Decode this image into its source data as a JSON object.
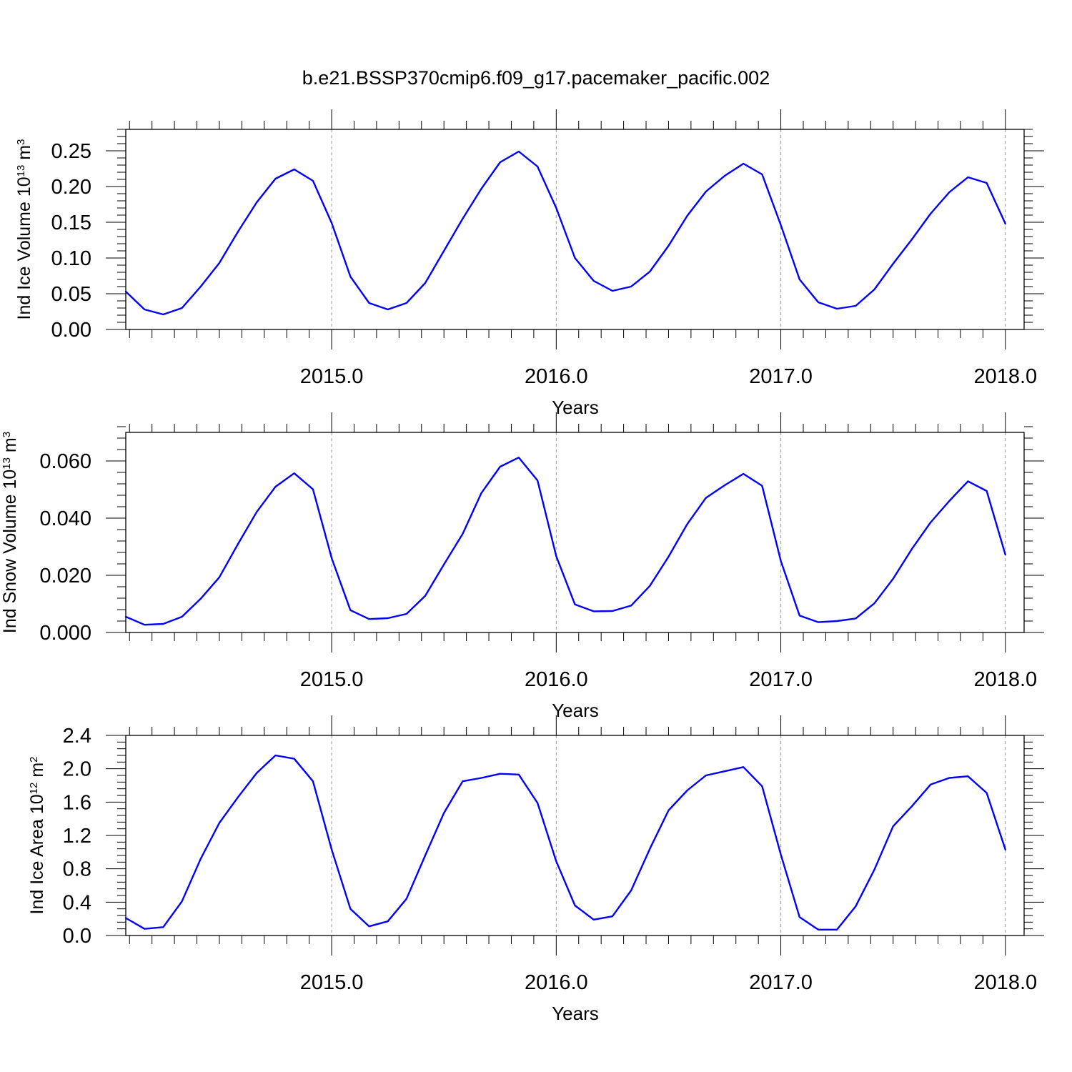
{
  "title": "b.e21.BSSP370cmip6.f09_g17.pacemaker_pacific.002",
  "colors": {
    "series": "#0000ff",
    "axis": "#000000",
    "grid": "#999999"
  },
  "chart_data": [
    {
      "type": "line",
      "id": "ice-volume",
      "ylabel": "Ind Ice Volume 10",
      "ylabel_exp": "13",
      "ylabel_unit": " m",
      "ylabel_unit_exp": "3",
      "xlabel": "Years",
      "xlim": [
        2014.0833,
        2018.0833
      ],
      "ylim": [
        0,
        0.28
      ],
      "xticks": [
        2015,
        2016,
        2017,
        2018
      ],
      "xtick_labels": [
        "2015.0",
        "2016.0",
        "2017.0",
        "2018.0"
      ],
      "yticks": [
        0,
        0.05,
        0.1,
        0.15,
        0.2,
        0.25
      ],
      "ytick_labels": [
        "0.00",
        "0.05",
        "0.10",
        "0.15",
        "0.20",
        "0.25"
      ],
      "x_grid": true,
      "x": [
        2014.0833,
        2014.1667,
        2014.25,
        2014.3333,
        2014.4167,
        2014.5,
        2014.5833,
        2014.6667,
        2014.75,
        2014.8333,
        2014.9167,
        2015.0,
        2015.0833,
        2015.1667,
        2015.25,
        2015.3333,
        2015.4167,
        2015.5,
        2015.5833,
        2015.6667,
        2015.75,
        2015.8333,
        2015.9167,
        2016.0,
        2016.0833,
        2016.1667,
        2016.25,
        2016.3333,
        2016.4167,
        2016.5,
        2016.5833,
        2016.6667,
        2016.75,
        2016.8333,
        2016.9167,
        2017.0,
        2017.0833,
        2017.1667,
        2017.25,
        2017.3333,
        2017.4167,
        2017.5,
        2017.5833,
        2017.6667,
        2017.75,
        2017.8333,
        2017.9167,
        2018.0
      ],
      "values": [
        0.053,
        0.028,
        0.021,
        0.03,
        0.06,
        0.093,
        0.137,
        0.178,
        0.211,
        0.224,
        0.208,
        0.149,
        0.074,
        0.037,
        0.028,
        0.037,
        0.065,
        0.11,
        0.155,
        0.197,
        0.234,
        0.249,
        0.228,
        0.17,
        0.1,
        0.068,
        0.054,
        0.06,
        0.081,
        0.117,
        0.159,
        0.193,
        0.215,
        0.232,
        0.217,
        0.146,
        0.07,
        0.038,
        0.029,
        0.033,
        0.056,
        0.092,
        0.126,
        0.162,
        0.192,
        0.213,
        0.205,
        0.148
      ]
    },
    {
      "type": "line",
      "id": "snow-volume",
      "ylabel": "Ind Snow Volume 10",
      "ylabel_exp": "13",
      "ylabel_unit": " m",
      "ylabel_unit_exp": "3",
      "xlabel": "Years",
      "xlim": [
        2014.0833,
        2018.0833
      ],
      "ylim": [
        0,
        0.07
      ],
      "xticks": [
        2015,
        2016,
        2017,
        2018
      ],
      "xtick_labels": [
        "2015.0",
        "2016.0",
        "2017.0",
        "2018.0"
      ],
      "yticks": [
        0,
        0.02,
        0.04,
        0.06
      ],
      "ytick_labels": [
        "0.000",
        "0.020",
        "0.040",
        "0.060"
      ],
      "x_grid": true,
      "x": [
        2014.0833,
        2014.1667,
        2014.25,
        2014.3333,
        2014.4167,
        2014.5,
        2014.5833,
        2014.6667,
        2014.75,
        2014.8333,
        2014.9167,
        2015.0,
        2015.0833,
        2015.1667,
        2015.25,
        2015.3333,
        2015.4167,
        2015.5,
        2015.5833,
        2015.6667,
        2015.75,
        2015.8333,
        2015.9167,
        2016.0,
        2016.0833,
        2016.1667,
        2016.25,
        2016.3333,
        2016.4167,
        2016.5,
        2016.5833,
        2016.6667,
        2016.75,
        2016.8333,
        2016.9167,
        2017.0,
        2017.0833,
        2017.1667,
        2017.25,
        2017.3333,
        2017.4167,
        2017.5,
        2017.5833,
        2017.6667,
        2017.75,
        2017.8333,
        2017.9167,
        2018.0
      ],
      "values": [
        0.0055,
        0.0027,
        0.003,
        0.0055,
        0.0118,
        0.0193,
        0.031,
        0.0422,
        0.051,
        0.0557,
        0.0501,
        0.026,
        0.0078,
        0.0047,
        0.005,
        0.0065,
        0.0128,
        0.0238,
        0.0345,
        0.0488,
        0.058,
        0.0612,
        0.0532,
        0.0267,
        0.0098,
        0.0074,
        0.0075,
        0.0094,
        0.0163,
        0.0265,
        0.0379,
        0.0471,
        0.0515,
        0.0555,
        0.0513,
        0.025,
        0.0059,
        0.0036,
        0.004,
        0.0049,
        0.0102,
        0.0188,
        0.0292,
        0.0385,
        0.046,
        0.0529,
        0.0495,
        0.0272
      ]
    },
    {
      "type": "line",
      "id": "ice-area",
      "ylabel": "Ind Ice Area 10",
      "ylabel_exp": "12",
      "ylabel_unit": " m",
      "ylabel_unit_exp": "2",
      "xlabel": "Years",
      "xlim": [
        2014.0833,
        2018.0833
      ],
      "ylim": [
        0,
        2.4
      ],
      "xticks": [
        2015,
        2016,
        2017,
        2018
      ],
      "xtick_labels": [
        "2015.0",
        "2016.0",
        "2017.0",
        "2018.0"
      ],
      "yticks": [
        0,
        0.4,
        0.8,
        1.2,
        1.6,
        2.0,
        2.4
      ],
      "ytick_labels": [
        "0.0",
        "0.4",
        "0.8",
        "1.2",
        "1.6",
        "2.0",
        "2.4"
      ],
      "x_grid": true,
      "x": [
        2014.0833,
        2014.1667,
        2014.25,
        2014.3333,
        2014.4167,
        2014.5,
        2014.5833,
        2014.6667,
        2014.75,
        2014.8333,
        2014.9167,
        2015.0,
        2015.0833,
        2015.1667,
        2015.25,
        2015.3333,
        2015.4167,
        2015.5,
        2015.5833,
        2015.6667,
        2015.75,
        2015.8333,
        2015.9167,
        2016.0,
        2016.0833,
        2016.1667,
        2016.25,
        2016.3333,
        2016.4167,
        2016.5,
        2016.5833,
        2016.6667,
        2016.75,
        2016.8333,
        2016.9167,
        2017.0,
        2017.0833,
        2017.1667,
        2017.25,
        2017.3333,
        2017.4167,
        2017.5,
        2017.5833,
        2017.6667,
        2017.75,
        2017.8333,
        2017.9167,
        2018.0
      ],
      "values": [
        0.21,
        0.08,
        0.1,
        0.41,
        0.92,
        1.35,
        1.66,
        1.95,
        2.16,
        2.12,
        1.85,
        1.03,
        0.32,
        0.11,
        0.17,
        0.44,
        0.96,
        1.47,
        1.85,
        1.89,
        1.94,
        1.93,
        1.59,
        0.89,
        0.36,
        0.19,
        0.23,
        0.54,
        1.04,
        1.5,
        1.74,
        1.92,
        1.97,
        2.02,
        1.79,
        0.97,
        0.22,
        0.07,
        0.07,
        0.35,
        0.79,
        1.31,
        1.55,
        1.81,
        1.89,
        1.91,
        1.71,
        1.03
      ]
    }
  ]
}
